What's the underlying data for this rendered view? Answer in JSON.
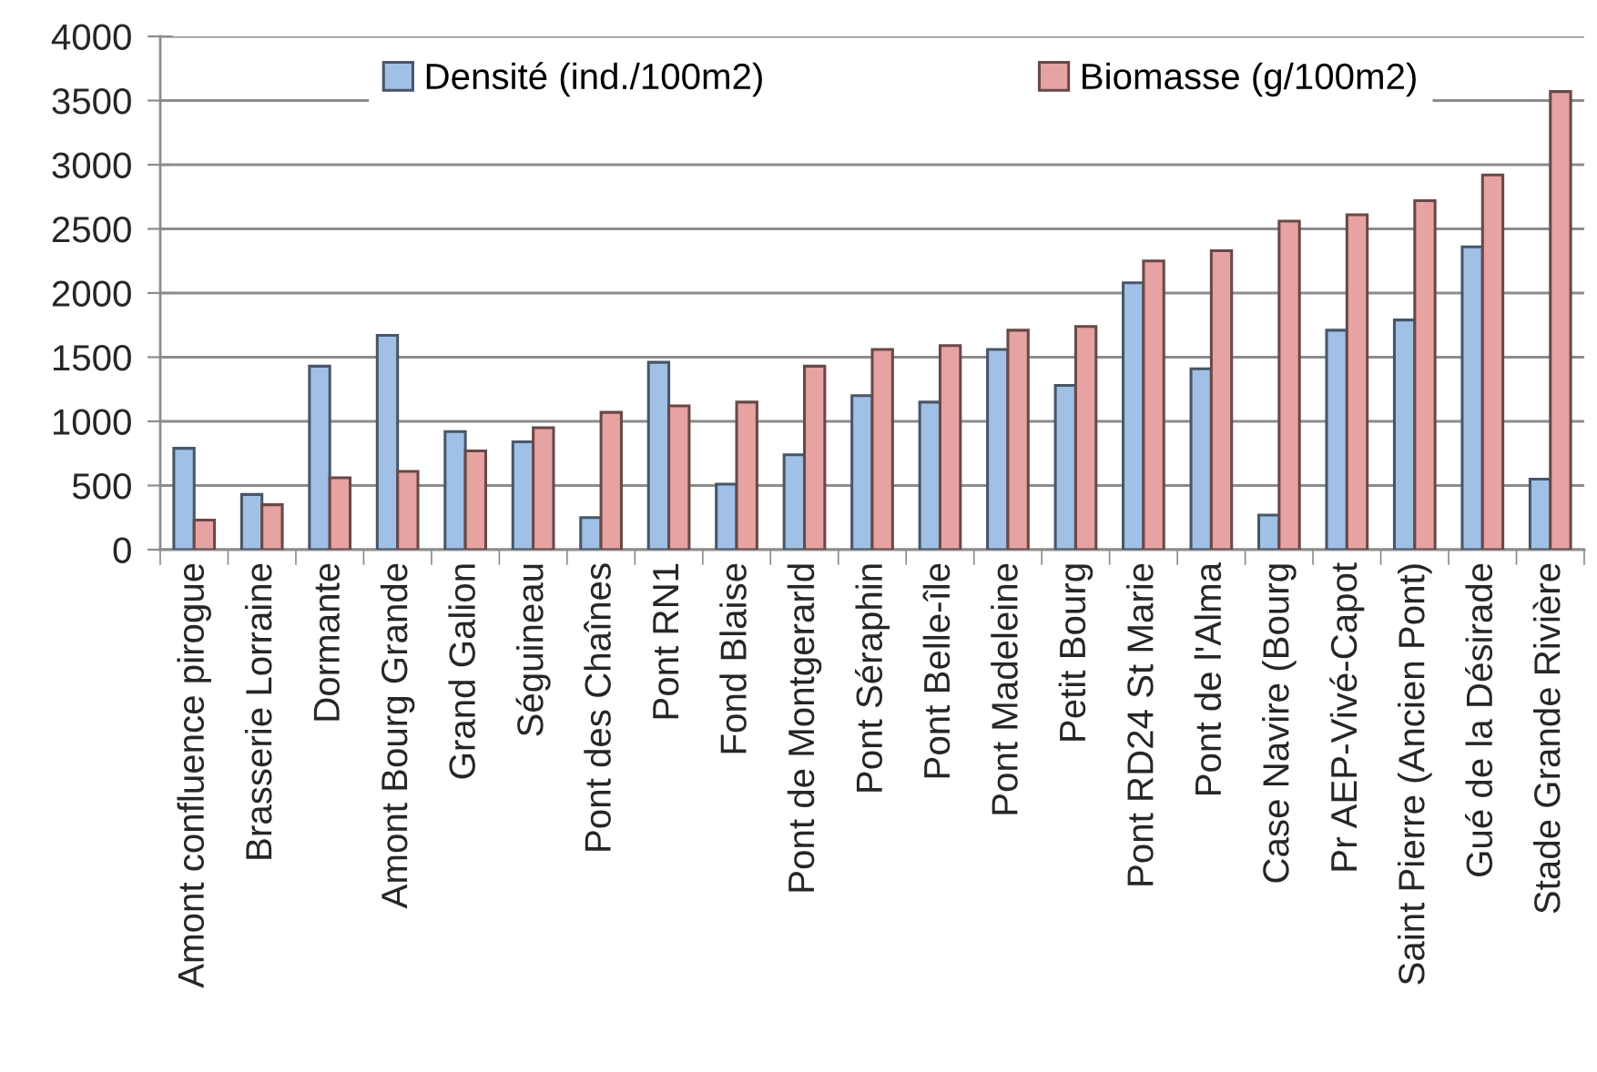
{
  "chart_data": {
    "type": "bar",
    "categories": [
      "Amont confluence pirogue",
      "Brasserie Lorraine",
      "Dormante",
      "Amont Bourg Grande",
      "Grand Galion",
      "Séguineau",
      "Pont des Chaînes",
      "Pont RN1",
      "Fond Blaise",
      "Pont de Montgerarld",
      "Pont Séraphin",
      "Pont Belle-île",
      "Pont Madeleine",
      "Petit Bourg",
      "Pont RD24 St Marie",
      "Pont de l'Alma",
      "Case Navire (Bourg",
      "Pr AEP-Vivé-Capot",
      "Saint Pierre (Ancien Pont)",
      "Gué de la Désirade",
      "Stade Grande Rivière"
    ],
    "series": [
      {
        "name": "Densité (ind./100m2)",
        "color": "#a0c0e6",
        "values": [
          790,
          430,
          1430,
          1670,
          920,
          840,
          250,
          1460,
          510,
          740,
          1200,
          1150,
          1560,
          1280,
          2080,
          1410,
          270,
          1710,
          1790,
          2360,
          550
        ]
      },
      {
        "name": "Biomasse (g/100m2)",
        "color": "#e6a3a1",
        "values": [
          230,
          350,
          560,
          610,
          770,
          950,
          1070,
          1120,
          1150,
          1430,
          1560,
          1590,
          1710,
          1740,
          2250,
          2330,
          2560,
          2610,
          2720,
          2920,
          3570
        ]
      }
    ],
    "ylim": [
      0,
      4000
    ],
    "yticks": [
      0,
      500,
      1000,
      1500,
      2000,
      2500,
      3000,
      3500,
      4000
    ],
    "grid": "y",
    "legend": "top"
  }
}
